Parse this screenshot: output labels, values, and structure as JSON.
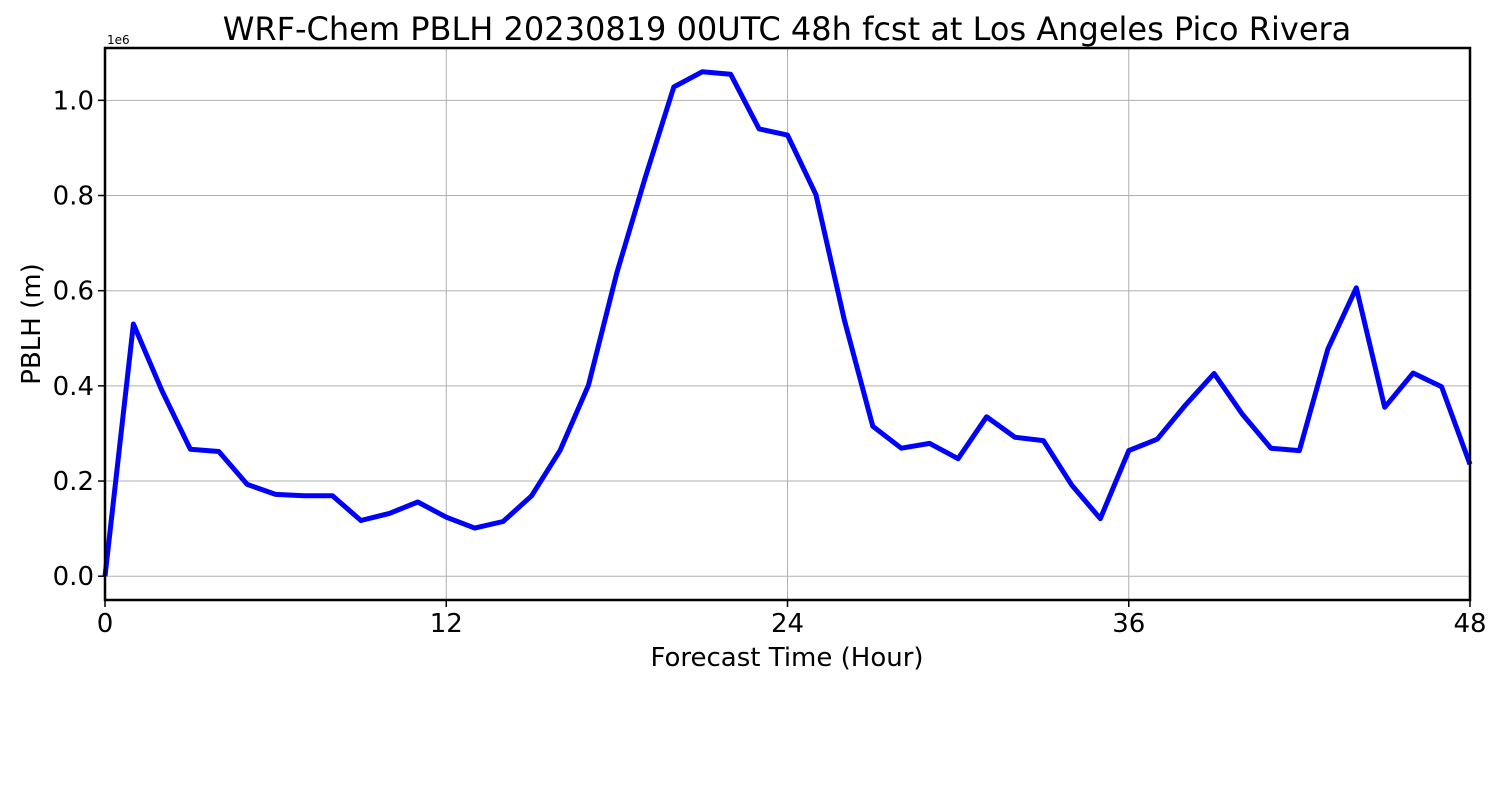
{
  "chart_data": {
    "type": "line",
    "title": "WRF-Chem PBLH  20230819 00UTC 48h fcst at Los Angeles Pico Rivera",
    "xlabel": "Forecast Time (Hour)",
    "ylabel": "PBLH  (m)",
    "y_offset_label": "1e6",
    "xlim": [
      0,
      48
    ],
    "ylim": [
      -0.05,
      1.11
    ],
    "y_scale_factor": 1000000,
    "x_ticks": [
      0,
      12,
      24,
      36,
      48
    ],
    "x_tick_labels": [
      "0",
      "12",
      "24",
      "36",
      "48"
    ],
    "y_ticks": [
      0.0,
      0.2,
      0.4,
      0.6,
      0.8,
      1.0
    ],
    "y_tick_labels": [
      "0.0",
      "0.2",
      "0.4",
      "0.6",
      "0.8",
      "1.0"
    ],
    "grid": true,
    "series": [
      {
        "color": "#0000ff",
        "x": [
          0,
          1,
          2,
          3,
          4,
          5,
          6,
          7,
          8,
          9,
          10,
          11,
          12,
          13,
          14,
          15,
          16,
          17,
          18,
          19,
          20,
          21,
          22,
          23,
          24,
          25,
          26,
          27,
          28,
          29,
          30,
          31,
          32,
          33,
          34,
          35,
          36,
          37,
          38,
          39,
          40,
          41,
          42,
          43,
          44,
          45,
          46,
          47,
          48
        ],
        "values": [
          0.0,
          0.53,
          0.39,
          0.267,
          0.262,
          0.193,
          0.172,
          0.169,
          0.169,
          0.117,
          0.132,
          0.156,
          0.124,
          0.101,
          0.115,
          0.169,
          0.264,
          0.401,
          0.638,
          0.838,
          1.028,
          1.06,
          1.055,
          0.94,
          0.927,
          0.802,
          0.538,
          0.315,
          0.269,
          0.279,
          0.247,
          0.335,
          0.292,
          0.285,
          0.191,
          0.121,
          0.264,
          0.288,
          0.36,
          0.426,
          0.34,
          0.269,
          0.264,
          0.477,
          0.606,
          0.355,
          0.427,
          0.398,
          0.235
        ]
      }
    ]
  }
}
